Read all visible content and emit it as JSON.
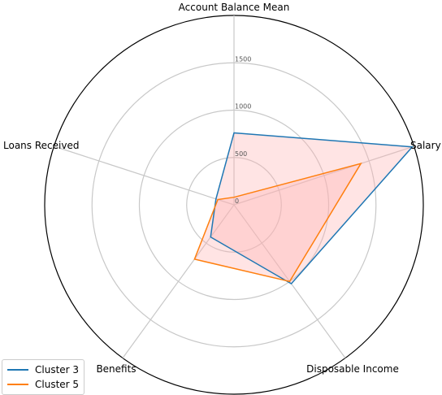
{
  "chart_data": {
    "type": "radar",
    "axes": [
      "Account Balance Mean",
      "Salary",
      "Disposable Income",
      "Benefits",
      "Loans Received"
    ],
    "rmax": 2000,
    "ticks": [
      {
        "value": 0,
        "label": "0"
      },
      {
        "value": 500,
        "label": "500"
      },
      {
        "value": 1000,
        "label": "1000"
      },
      {
        "value": 1500,
        "label": "1500"
      }
    ],
    "series": [
      {
        "name": "Cluster 3",
        "color": "#1f77b4",
        "values": [
          760,
          1980,
          1030,
          420,
          200
        ]
      },
      {
        "name": "Cluster 5",
        "color": "#ff7f0e",
        "values": [
          80,
          1410,
          1000,
          710,
          180
        ]
      }
    ],
    "fill_color": "#ffb3b3",
    "legend": "lower-left"
  }
}
